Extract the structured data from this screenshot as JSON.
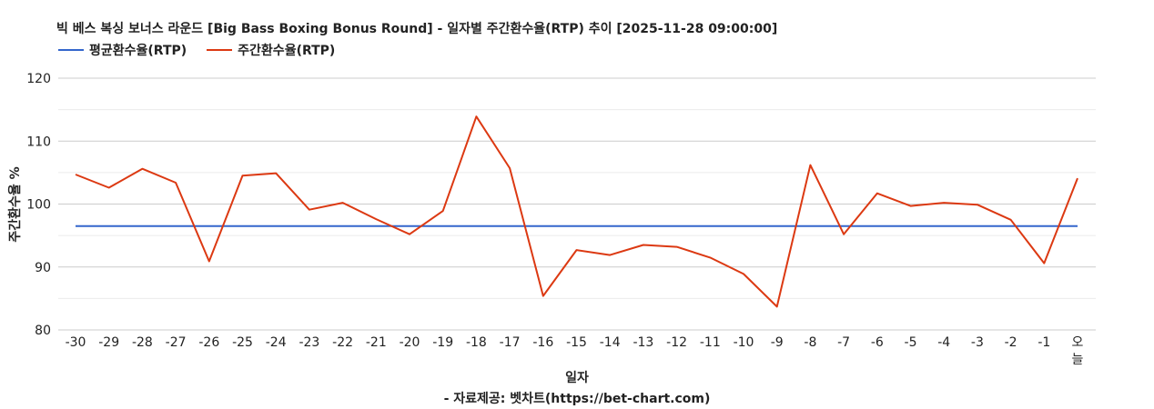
{
  "chart_data": {
    "type": "line",
    "title": "빅 베스 복싱 보너스 라운드 [Big Bass Boxing Bonus Round] - 일자별 주간환수율(RTP) 추이 [2025-11-28 09:00:00]",
    "xlabel": "일자",
    "ylabel": "주간환수율 %",
    "credit": "- 자료제공: 벳차트(https://bet-chart.com)",
    "ylim": [
      80,
      120
    ],
    "yticks": [
      "80",
      "90",
      "100",
      "110",
      "120"
    ],
    "grid": true,
    "legend_position": "top-left",
    "categories": [
      "-30",
      "-29",
      "-28",
      "-27",
      "-26",
      "-25",
      "-24",
      "-23",
      "-22",
      "-21",
      "-20",
      "-19",
      "-18",
      "-17",
      "-16",
      "-15",
      "-14",
      "-13",
      "-12",
      "-11",
      "-10",
      "-9",
      "-8",
      "-7",
      "-6",
      "-5",
      "-4",
      "-3",
      "-2",
      "-1",
      "오늘"
    ],
    "series": [
      {
        "name": "평균환수율(RTP)",
        "color": "#3366cc",
        "values": [
          96.5,
          96.5,
          96.5,
          96.5,
          96.5,
          96.5,
          96.5,
          96.5,
          96.5,
          96.5,
          96.5,
          96.5,
          96.5,
          96.5,
          96.5,
          96.5,
          96.5,
          96.5,
          96.5,
          96.5,
          96.5,
          96.5,
          96.5,
          96.5,
          96.5,
          96.5,
          96.5,
          96.5,
          96.5,
          96.5,
          96.5
        ]
      },
      {
        "name": "주간환수율(RTP)",
        "color": "#dc3912",
        "values": [
          104.7,
          102.6,
          105.6,
          103.4,
          90.9,
          104.5,
          104.9,
          99.1,
          100.2,
          97.6,
          95.2,
          98.9,
          113.9,
          105.7,
          85.4,
          92.7,
          91.9,
          93.5,
          93.2,
          91.5,
          88.9,
          83.7,
          106.2,
          95.2,
          101.7,
          99.7,
          100.2,
          99.9,
          97.5,
          90.6,
          104.1
        ]
      }
    ]
  }
}
